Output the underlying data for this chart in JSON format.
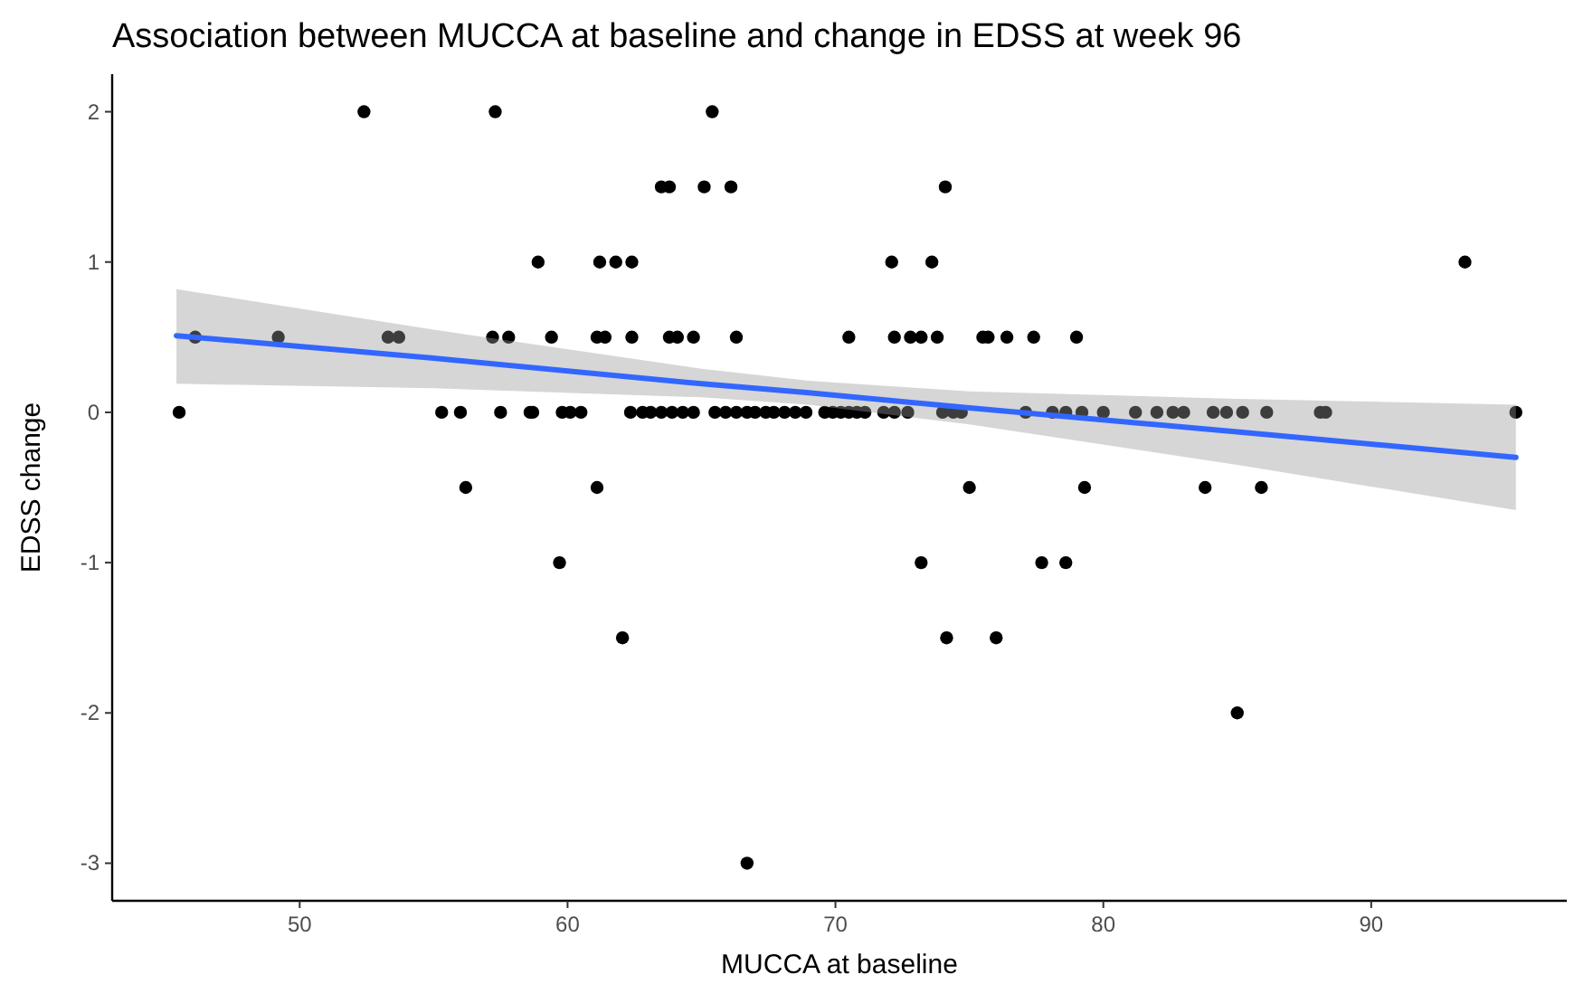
{
  "chart_data": {
    "type": "scatter",
    "title": "Association between MUCCA at baseline and change in EDSS at week 96",
    "xlabel": "MUCCA at baseline",
    "ylabel": "EDSS change",
    "xlim": [
      43,
      97.3
    ],
    "ylim": [
      -3.25,
      2.25
    ],
    "xticks": [
      50,
      60,
      70,
      80,
      90
    ],
    "yticks": [
      -3,
      -2,
      -1,
      0,
      1,
      2
    ],
    "grid": false,
    "marker": "circle",
    "series": [
      {
        "color": "#000000",
        "x": [
          52.4,
          57.3,
          65.4,
          63.5,
          63.8,
          65.1,
          66.1,
          74.1,
          58.9,
          61.2,
          61.8,
          62.4,
          72.1,
          73.6,
          93.5,
          46.1,
          49.2,
          53.3,
          53.7,
          57.2,
          57.8,
          59.4,
          61.1,
          61.4,
          62.4,
          63.8,
          64.1,
          64.7,
          66.3,
          70.5,
          72.2,
          72.8,
          73.2,
          73.8,
          75.5,
          75.7,
          76.4,
          77.4,
          79.0,
          45.5,
          55.3,
          56.0,
          57.5,
          58.6,
          58.7,
          59.8,
          60.1,
          60.5,
          62.35,
          62.8,
          63.1,
          63.5,
          63.9,
          64.3,
          64.7,
          65.5,
          65.9,
          66.3,
          66.7,
          67.0,
          67.4,
          67.7,
          68.1,
          68.5,
          68.9,
          69.6,
          69.9,
          70.2,
          70.5,
          70.8,
          71.1,
          71.8,
          72.2,
          72.7,
          74.0,
          74.4,
          74.7,
          77.1,
          78.1,
          78.6,
          79.2,
          80.0,
          81.2,
          82.0,
          82.6,
          83.0,
          84.1,
          84.6,
          85.2,
          86.1,
          88.1,
          88.3,
          95.4,
          56.2,
          61.1,
          75.0,
          79.3,
          83.8,
          85.9,
          59.7,
          73.2,
          77.7,
          78.6,
          62.05,
          74.15,
          76.0,
          85.0,
          66.7
        ],
        "values": [
          2,
          2,
          2,
          1.5,
          1.5,
          1.5,
          1.5,
          1.5,
          1,
          1,
          1,
          1,
          1,
          1,
          1,
          0.5,
          0.5,
          0.5,
          0.5,
          0.5,
          0.5,
          0.5,
          0.5,
          0.5,
          0.5,
          0.5,
          0.5,
          0.5,
          0.5,
          0.5,
          0.5,
          0.5,
          0.5,
          0.5,
          0.5,
          0.5,
          0.5,
          0.5,
          0.5,
          0,
          0,
          0,
          0,
          0,
          0,
          0,
          0,
          0,
          0,
          0,
          0,
          0,
          0,
          0,
          0,
          0,
          0,
          0,
          0,
          0,
          0,
          0,
          0,
          0,
          0,
          0,
          0,
          0,
          0,
          0,
          0,
          0,
          0,
          0,
          0,
          0,
          0,
          0,
          0,
          0,
          0,
          0,
          0,
          0,
          0,
          0,
          0,
          0,
          0,
          0,
          0,
          0,
          0,
          -0.5,
          -0.5,
          -0.5,
          -0.5,
          -0.5,
          -0.5,
          -1,
          -1,
          -1,
          -1,
          -1.5,
          -1.5,
          -1.5,
          -2,
          -3
        ]
      },
      {
        "type": "line",
        "color": "#3366ff",
        "marker": "none",
        "x": [
          45.4,
          55,
          65,
          69,
          75,
          85,
          95.4
        ],
        "values": [
          0.51,
          0.36,
          0.19,
          0.13,
          0.03,
          -0.13,
          -0.3
        ],
        "lower": [
          0.19,
          0.16,
          0.1,
          0.05,
          -0.08,
          -0.35,
          -0.65
        ],
        "upper": [
          0.82,
          0.55,
          0.29,
          0.21,
          0.14,
          0.09,
          0.05
        ]
      }
    ]
  }
}
